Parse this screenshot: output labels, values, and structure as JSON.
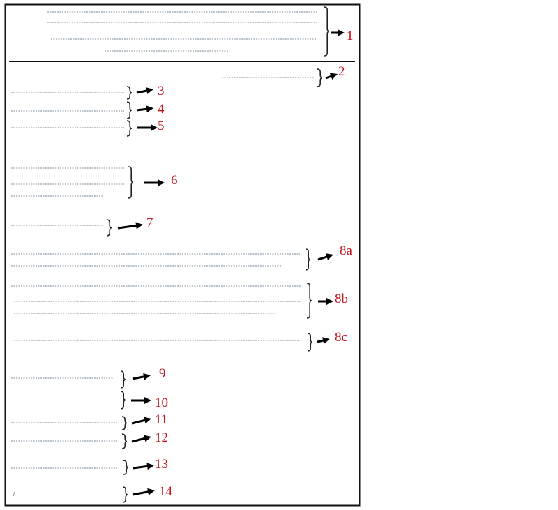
{
  "labels": {
    "l1": "1",
    "l2": "2",
    "l3": "3",
    "l4": "4",
    "l5": "5",
    "l6": "6",
    "l7": "7",
    "l8a": "8a",
    "l8b": "8b",
    "l8c": "8c",
    "l9": "9",
    "l10": "10",
    "l11": "11",
    "l12": "12",
    "l13": "13",
    "l14": "14"
  },
  "marker_14": "-/-",
  "colors": {
    "label": "#c0141c",
    "dotted_line": "#7a8a9a",
    "frame": "#000000"
  }
}
